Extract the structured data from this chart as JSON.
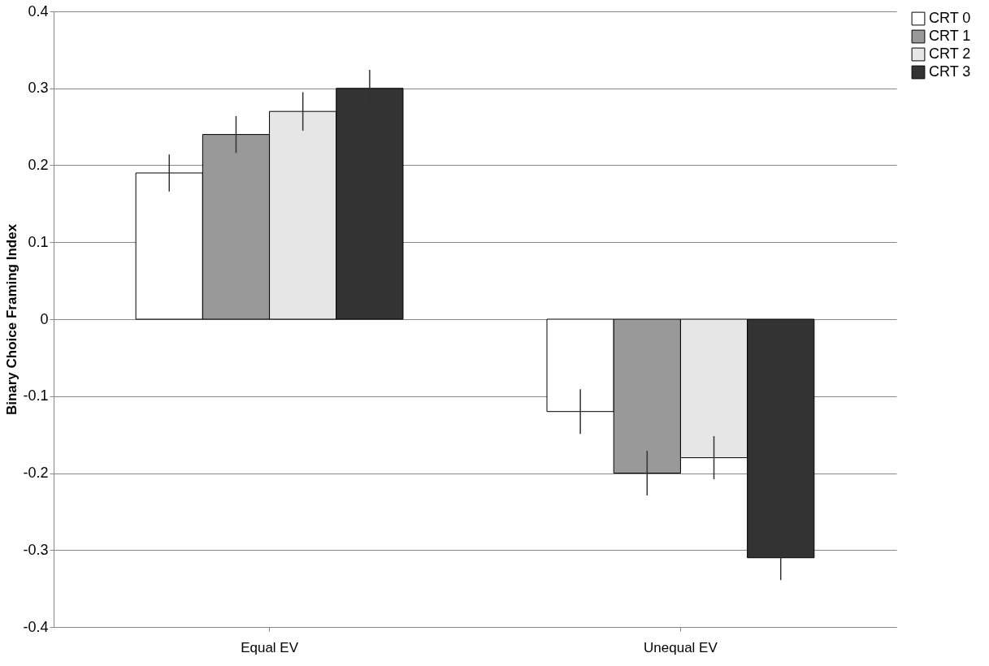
{
  "chart_data": {
    "type": "bar",
    "ylabel": "Binary Choice Framing Index",
    "categories": [
      "Equal EV",
      "Unequal EV"
    ],
    "series": [
      {
        "name": "CRT 0",
        "color": "#ffffff",
        "values": [
          0.19,
          -0.12
        ],
        "errors": [
          0.024,
          0.029
        ]
      },
      {
        "name": "CRT 1",
        "color": "#999999",
        "values": [
          0.24,
          -0.2
        ],
        "errors": [
          0.024,
          0.029
        ]
      },
      {
        "name": "CRT 2",
        "color": "#e6e6e6",
        "values": [
          0.27,
          -0.18
        ],
        "errors": [
          0.025,
          0.028
        ]
      },
      {
        "name": "CRT 3",
        "color": "#333333",
        "values": [
          0.3,
          -0.31
        ],
        "errors": [
          0.024,
          0.029
        ]
      }
    ],
    "ylim": [
      -0.4,
      0.4
    ],
    "yticks": [
      -0.4,
      -0.3,
      -0.2,
      -0.1,
      0,
      0.1,
      0.2,
      0.3,
      0.4
    ],
    "grid": "y",
    "legend": "right"
  }
}
